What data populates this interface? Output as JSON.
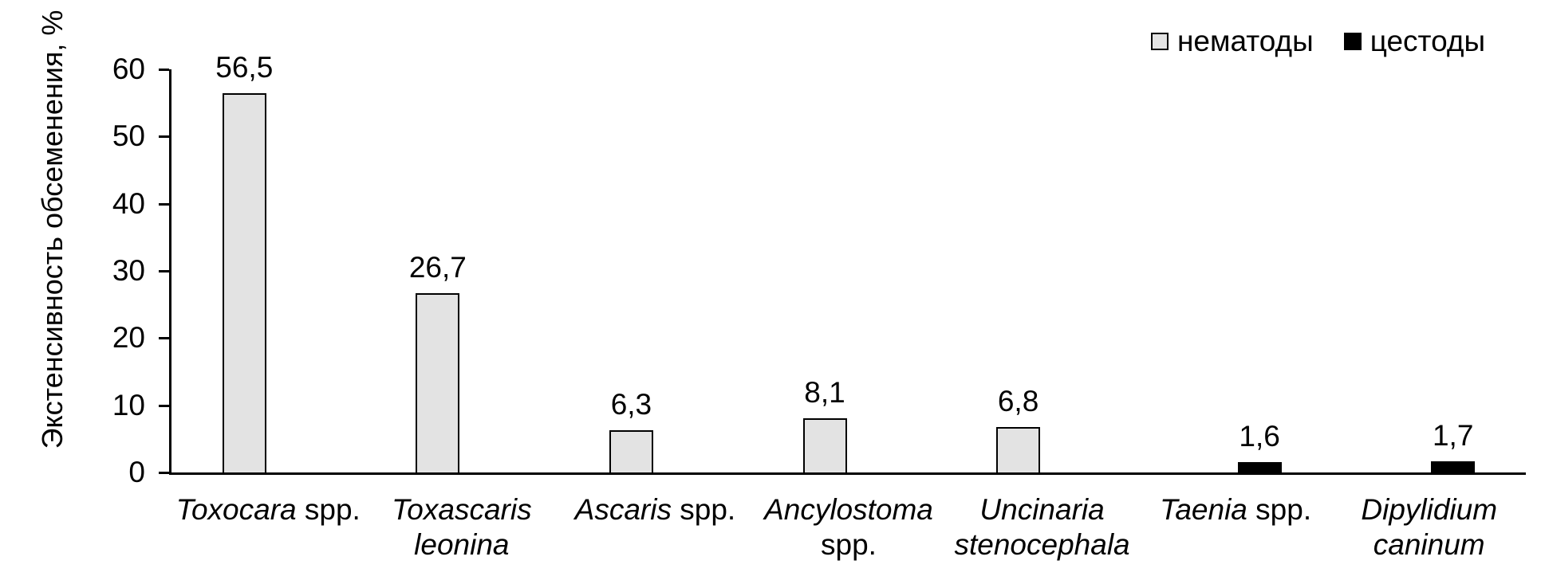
{
  "chart_data": {
    "type": "bar",
    "title": "",
    "xlabel": "",
    "ylabel": "Экстенсивность обсеменения, %",
    "ylim": [
      0,
      60
    ],
    "ytick_interval": 10,
    "yticks": [
      "0",
      "10",
      "20",
      "30",
      "40",
      "50",
      "60"
    ],
    "grid": false,
    "legend_position": "top-right",
    "legend": [
      {
        "label": "нематоды",
        "fill": "#e3e3e3",
        "border": "#000000",
        "style": "fill-gray"
      },
      {
        "label": "цестоды",
        "fill": "#000000",
        "border": "#000000",
        "style": "fill-black"
      }
    ],
    "colors": {
      "axis": "#000000",
      "text": "#000000",
      "background": "#ffffff"
    },
    "bars": [
      {
        "category": "Toxocara spp.",
        "category_lines": [
          [
            {
              "text": "Toxocara",
              "italic": true
            },
            {
              "text": " spp.",
              "italic": false
            }
          ]
        ],
        "series": "нематоды",
        "value": 56.5,
        "value_label": "56,5"
      },
      {
        "category": "Toxascaris leonina",
        "category_lines": [
          [
            {
              "text": "Toxascaris",
              "italic": true
            }
          ],
          [
            {
              "text": "leonina",
              "italic": true
            }
          ]
        ],
        "series": "нематоды",
        "value": 26.7,
        "value_label": "26,7"
      },
      {
        "category": "Ascaris spp.",
        "category_lines": [
          [
            {
              "text": "Ascaris",
              "italic": true
            },
            {
              "text": " spp.",
              "italic": false
            }
          ]
        ],
        "series": "нематоды",
        "value": 6.3,
        "value_label": "6,3"
      },
      {
        "category": "Ancylostoma spp.",
        "category_lines": [
          [
            {
              "text": "Ancylostoma",
              "italic": true
            }
          ],
          [
            {
              "text": "spp.",
              "italic": false
            }
          ]
        ],
        "series": "нематоды",
        "value": 8.1,
        "value_label": "8,1"
      },
      {
        "category": "Uncinaria stenocephala",
        "category_lines": [
          [
            {
              "text": "Uncinaria",
              "italic": true
            }
          ],
          [
            {
              "text": "stenocephala",
              "italic": true
            }
          ]
        ],
        "series": "нематоды",
        "value": 6.8,
        "value_label": "6,8"
      },
      {
        "category": "Taenia spp.",
        "category_lines": [
          [
            {
              "text": "Taenia",
              "italic": true
            },
            {
              "text": " spp.",
              "italic": false
            }
          ]
        ],
        "series": "цестоды",
        "value": 1.6,
        "value_label": "1,6"
      },
      {
        "category": "Dipylidium caninum",
        "category_lines": [
          [
            {
              "text": "Dipylidium",
              "italic": true
            }
          ],
          [
            {
              "text": "caninum",
              "italic": true
            }
          ]
        ],
        "series": "цестоды",
        "value": 1.7,
        "value_label": "1,7"
      }
    ]
  }
}
